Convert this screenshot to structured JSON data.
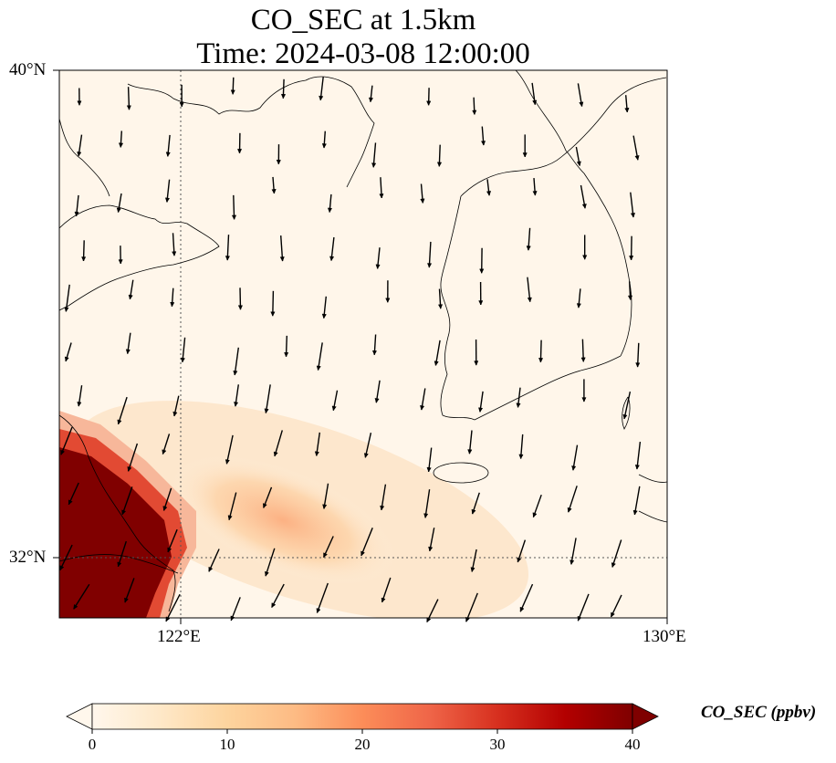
{
  "title": {
    "line1": "CO_SEC at 1.5km",
    "line2": "Time: 2024-03-08 12:00:00"
  },
  "map": {
    "variable": "CO_SEC",
    "level": "1.5km",
    "extent": {
      "lon": [
        120,
        130
      ],
      "lat": [
        31,
        40
      ]
    },
    "gridlines": {
      "lon": [
        122,
        130
      ],
      "lat": [
        32,
        40
      ]
    },
    "lat_labels": [
      "40°N",
      "32°N"
    ],
    "lon_labels": [
      "122°E",
      "130°E"
    ],
    "overlay": "wind vectors",
    "colormap": "OrRd"
  },
  "colorbar": {
    "label": "CO_SEC (ppbv)",
    "ticks": [
      "0",
      "10",
      "20",
      "30",
      "40"
    ],
    "range": [
      0,
      40
    ],
    "extend": "both"
  },
  "colors": {
    "low": "#fff7ec",
    "mid": "#fdbb84",
    "high": "#7f0000"
  }
}
